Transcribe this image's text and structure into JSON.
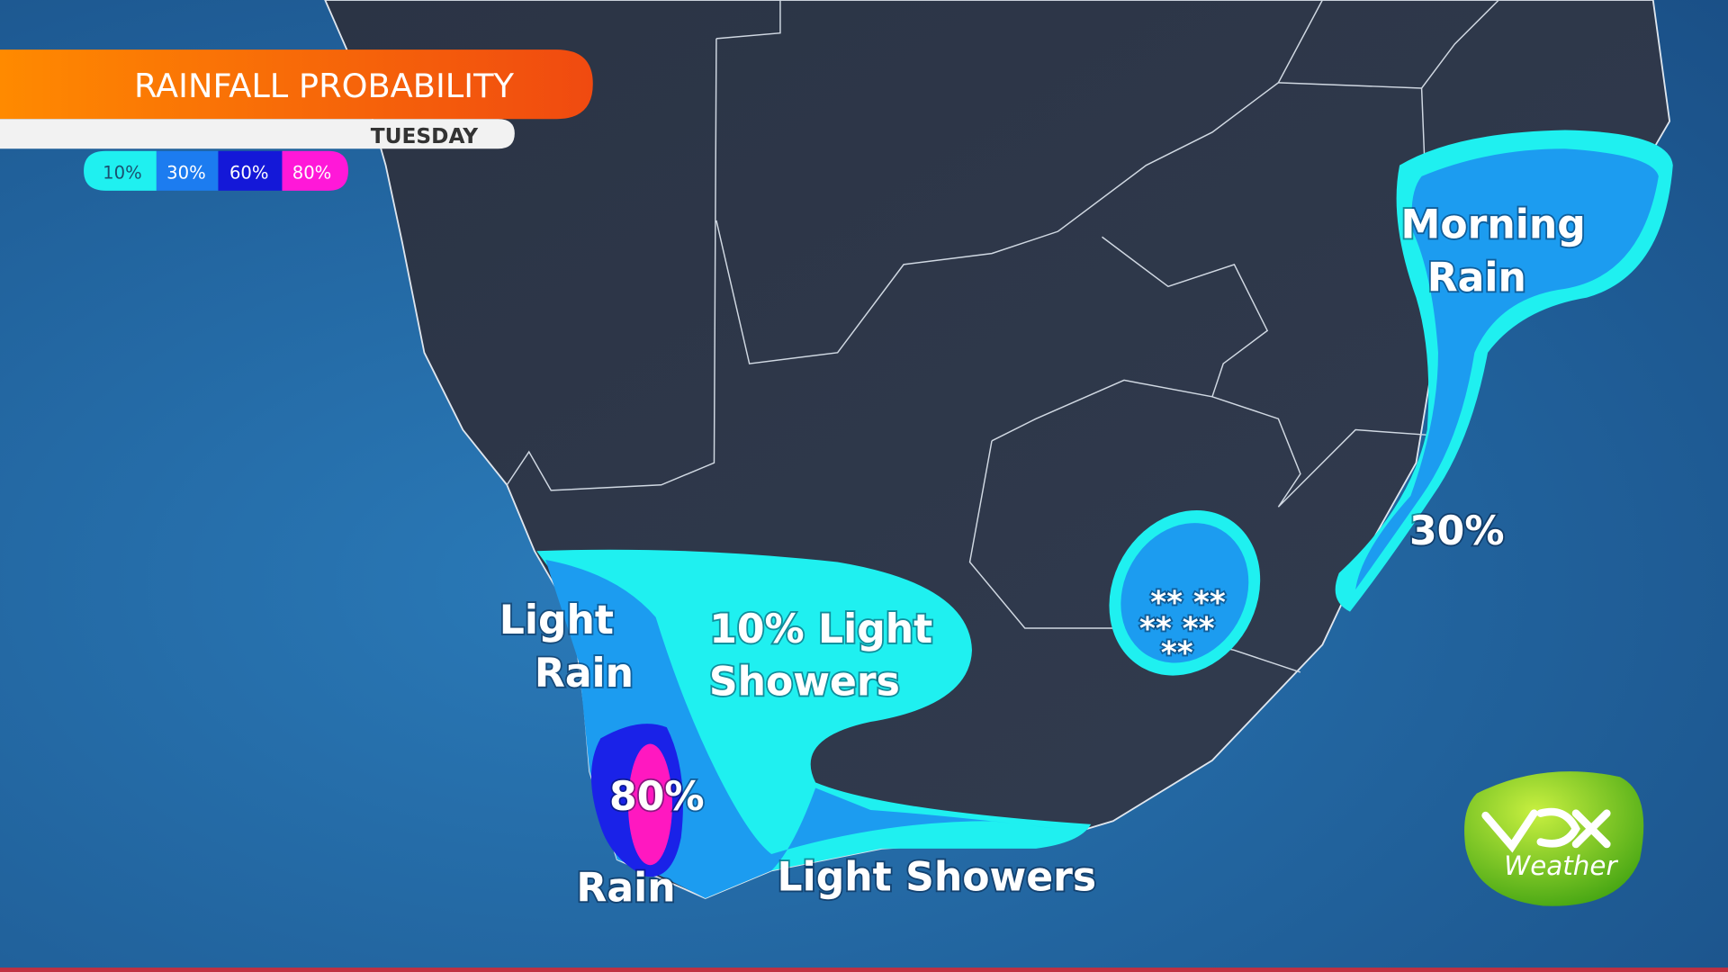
{
  "header": {
    "title": "RAINFALL PROBABILITY",
    "day": "TUESDAY"
  },
  "legend": [
    "10%",
    "30%",
    "60%",
    "80%"
  ],
  "labels": {
    "light_rain": [
      "Light",
      "Rain"
    ],
    "light_showers_10": [
      "10% Light",
      "Showers"
    ],
    "pct_80": "80%",
    "rain": "Rain",
    "light_showers": "Light Showers",
    "morning_rain": [
      "Morning",
      "Rain"
    ],
    "pct_30": "30%",
    "snow": [
      "** **",
      "** **",
      "**"
    ]
  },
  "logo": {
    "tagline": "Weather"
  }
}
